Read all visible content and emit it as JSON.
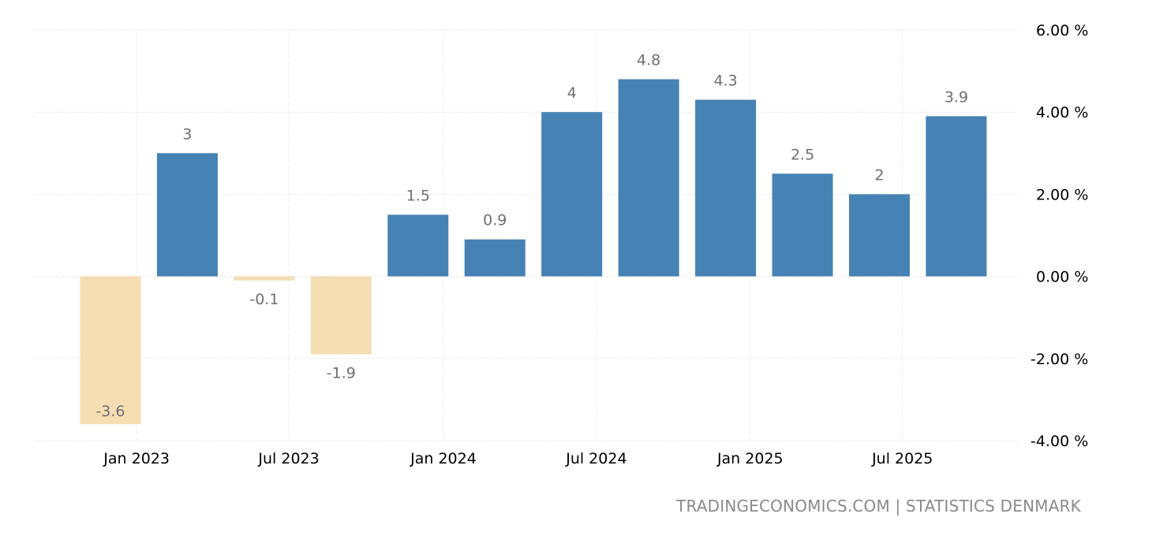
{
  "chart_data": {
    "type": "bar",
    "values": [
      -3.6,
      3,
      -0.1,
      -1.9,
      1.5,
      0.9,
      4,
      4.8,
      4.3,
      2.5,
      2,
      3.9
    ],
    "data_labels": [
      "-3.6",
      "3",
      "-0.1",
      "-1.9",
      "1.5",
      "0.9",
      "4",
      "4.8",
      "4.3",
      "2.5",
      "2",
      "3.9"
    ],
    "ylim": [
      -4,
      6
    ],
    "yticks": [
      {
        "value": 6,
        "label": "6.00 %"
      },
      {
        "value": 4,
        "label": "4.00 %"
      },
      {
        "value": 2,
        "label": "2.00 %"
      },
      {
        "value": 0,
        "label": "0.00 %"
      },
      {
        "value": -2,
        "label": "-2.00 %"
      },
      {
        "value": -4,
        "label": "-4.00 %"
      }
    ],
    "xticks": [
      {
        "index": 0.34,
        "label": "Jan 2023"
      },
      {
        "index": 2.32,
        "label": "Jul 2023"
      },
      {
        "index": 4.33,
        "label": "Jan 2024"
      },
      {
        "index": 6.32,
        "label": "Jul 2024"
      },
      {
        "index": 8.32,
        "label": "Jan 2025"
      },
      {
        "index": 10.3,
        "label": "Jul 2025"
      }
    ],
    "grid": true,
    "colors": {
      "positive": "#4682b4",
      "negative": "#f5deb3"
    },
    "xlabel": "",
    "ylabel": ""
  },
  "source": "TRADINGECONOMICS.COM | STATISTICS DENMARK"
}
